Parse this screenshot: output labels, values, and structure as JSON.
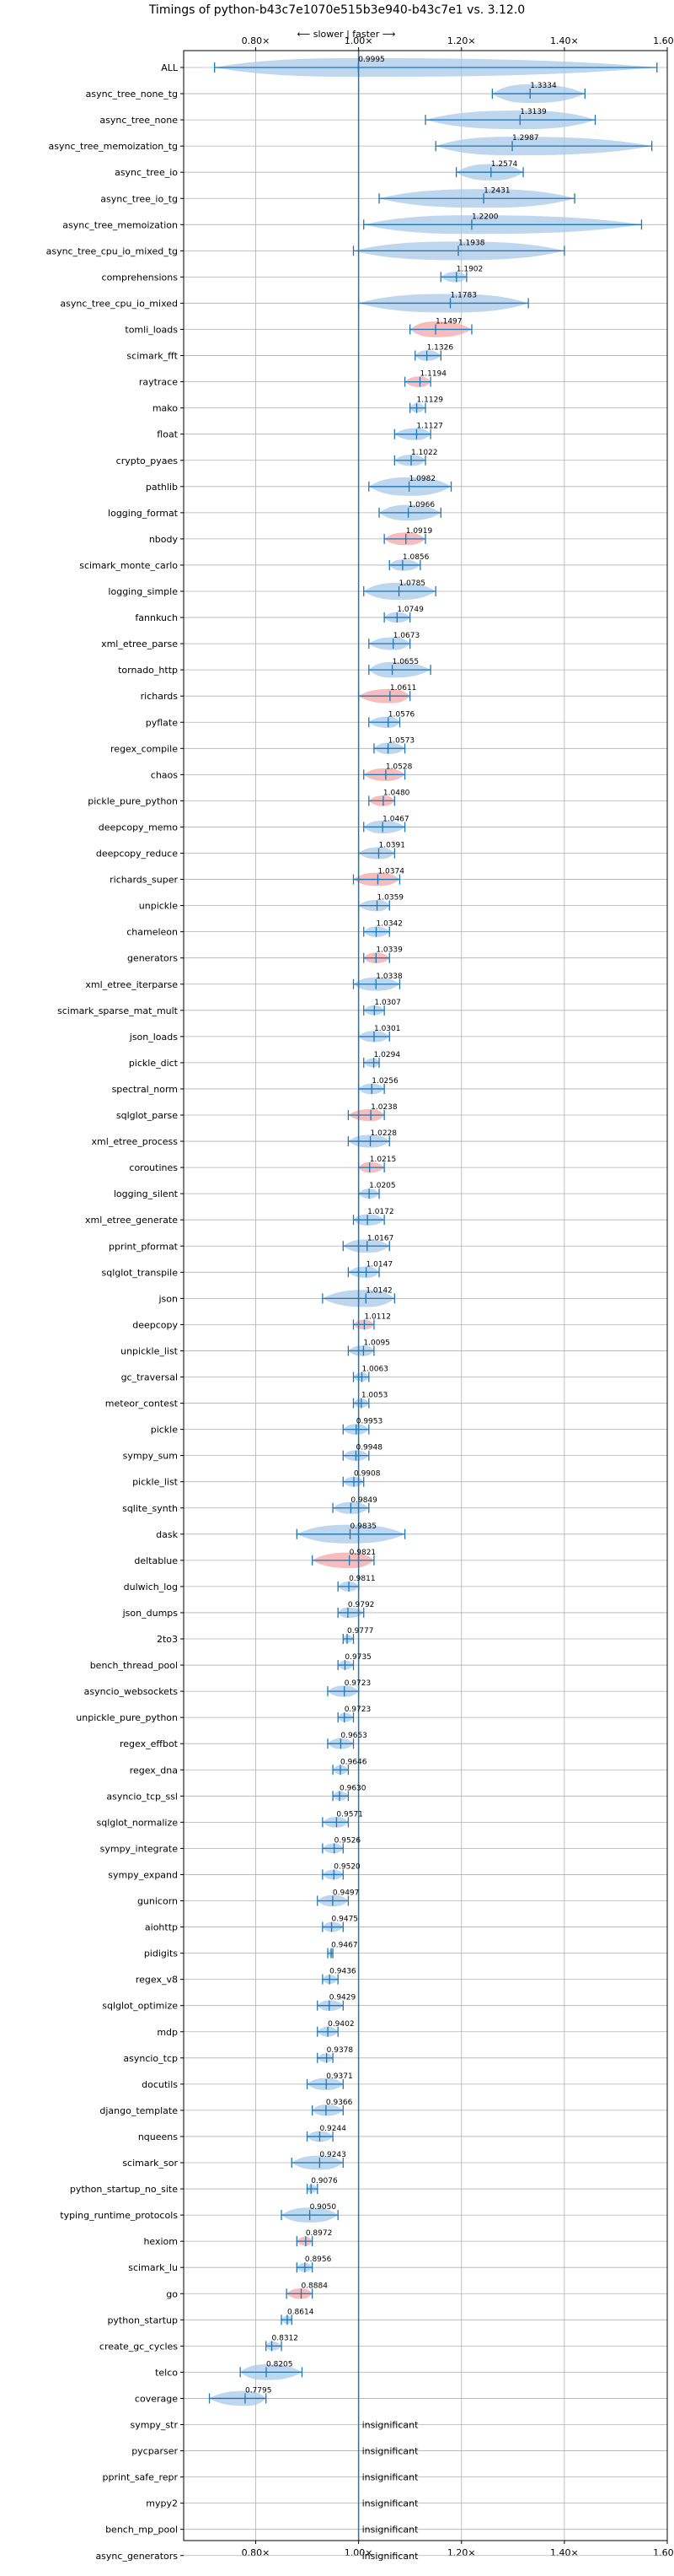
{
  "chart_data": {
    "type": "violin",
    "title": "Timings of python-b43c7e1070e515b3e940-b43c7e1 vs. 3.12.0",
    "direction_label": "⟵ slower | faster ⟶",
    "x_ticks": [
      {
        "value": 0.8,
        "label": "0.80×"
      },
      {
        "value": 1.0,
        "label": "1.00×"
      },
      {
        "value": 1.2,
        "label": "1.20×"
      },
      {
        "value": 1.4,
        "label": "1.40×"
      },
      {
        "value": 1.6,
        "label": "1.60×"
      }
    ],
    "xlim": [
      0.66,
      1.6
    ],
    "grid": true,
    "colors": {
      "faster": "#a8c8e8",
      "slower": "#f4a6a6",
      "line": "#1f77b4",
      "grid": "#b0b0b0"
    },
    "benchmarks": [
      {
        "name": "ALL",
        "value": 0.9995,
        "label": "0.9995",
        "min": 0.72,
        "max": 1.58
      },
      {
        "name": "async_tree_none_tg",
        "value": 1.3334,
        "label": "1.3334",
        "min": 1.26,
        "max": 1.44
      },
      {
        "name": "async_tree_none",
        "value": 1.3139,
        "label": "1.3139",
        "min": 1.13,
        "max": 1.46
      },
      {
        "name": "async_tree_memoization_tg",
        "value": 1.2987,
        "label": "1.2987",
        "min": 1.15,
        "max": 1.57
      },
      {
        "name": "async_tree_io",
        "value": 1.2574,
        "label": "1.2574",
        "min": 1.19,
        "max": 1.32
      },
      {
        "name": "async_tree_io_tg",
        "value": 1.2431,
        "label": "1.2431",
        "min": 1.04,
        "max": 1.42
      },
      {
        "name": "async_tree_memoization",
        "value": 1.22,
        "label": "1.2200",
        "min": 1.01,
        "max": 1.55
      },
      {
        "name": "async_tree_cpu_io_mixed_tg",
        "value": 1.1938,
        "label": "1.1938",
        "min": 0.99,
        "max": 1.4
      },
      {
        "name": "comprehensions",
        "value": 1.1902,
        "label": "1.1902",
        "min": 1.16,
        "max": 1.21
      },
      {
        "name": "async_tree_cpu_io_mixed",
        "value": 1.1783,
        "label": "1.1783",
        "min": 1.0,
        "max": 1.33
      },
      {
        "name": "tomli_loads",
        "value": 1.1497,
        "label": "1.1497",
        "min": 1.1,
        "max": 1.22
      },
      {
        "name": "scimark_fft",
        "value": 1.1326,
        "label": "1.1326",
        "min": 1.11,
        "max": 1.16
      },
      {
        "name": "raytrace",
        "value": 1.1194,
        "label": "1.1194",
        "min": 1.09,
        "max": 1.14
      },
      {
        "name": "mako",
        "value": 1.1129,
        "label": "1.1129",
        "min": 1.1,
        "max": 1.13
      },
      {
        "name": "float",
        "value": 1.1127,
        "label": "1.1127",
        "min": 1.07,
        "max": 1.14
      },
      {
        "name": "crypto_pyaes",
        "value": 1.1022,
        "label": "1.1022",
        "min": 1.07,
        "max": 1.13
      },
      {
        "name": "pathlib",
        "value": 1.0982,
        "label": "1.0982",
        "min": 1.02,
        "max": 1.18
      },
      {
        "name": "logging_format",
        "value": 1.0966,
        "label": "1.0966",
        "min": 1.04,
        "max": 1.16
      },
      {
        "name": "nbody",
        "value": 1.0919,
        "label": "1.0919",
        "min": 1.05,
        "max": 1.13
      },
      {
        "name": "scimark_monte_carlo",
        "value": 1.0856,
        "label": "1.0856",
        "min": 1.06,
        "max": 1.12
      },
      {
        "name": "logging_simple",
        "value": 1.0785,
        "label": "1.0785",
        "min": 1.01,
        "max": 1.15
      },
      {
        "name": "fannkuch",
        "value": 1.0749,
        "label": "1.0749",
        "min": 1.05,
        "max": 1.1
      },
      {
        "name": "xml_etree_parse",
        "value": 1.0673,
        "label": "1.0673",
        "min": 1.02,
        "max": 1.1
      },
      {
        "name": "tornado_http",
        "value": 1.0655,
        "label": "1.0655",
        "min": 1.02,
        "max": 1.14
      },
      {
        "name": "richards",
        "value": 1.0611,
        "label": "1.0611",
        "min": 1.0,
        "max": 1.1
      },
      {
        "name": "pyflate",
        "value": 1.0576,
        "label": "1.0576",
        "min": 1.02,
        "max": 1.08
      },
      {
        "name": "regex_compile",
        "value": 1.0573,
        "label": "1.0573",
        "min": 1.03,
        "max": 1.09
      },
      {
        "name": "chaos",
        "value": 1.0528,
        "label": "1.0528",
        "min": 1.01,
        "max": 1.09
      },
      {
        "name": "pickle_pure_python",
        "value": 1.048,
        "label": "1.0480",
        "min": 1.02,
        "max": 1.07
      },
      {
        "name": "deepcopy_memo",
        "value": 1.0467,
        "label": "1.0467",
        "min": 1.01,
        "max": 1.09
      },
      {
        "name": "deepcopy_reduce",
        "value": 1.0391,
        "label": "1.0391",
        "min": 1.0,
        "max": 1.07
      },
      {
        "name": "richards_super",
        "value": 1.0374,
        "label": "1.0374",
        "min": 0.99,
        "max": 1.08
      },
      {
        "name": "unpickle",
        "value": 1.0359,
        "label": "1.0359",
        "min": 1.0,
        "max": 1.06
      },
      {
        "name": "chameleon",
        "value": 1.0342,
        "label": "1.0342",
        "min": 1.01,
        "max": 1.06
      },
      {
        "name": "generators",
        "value": 1.0339,
        "label": "1.0339",
        "min": 1.01,
        "max": 1.06
      },
      {
        "name": "xml_etree_iterparse",
        "value": 1.0338,
        "label": "1.0338",
        "min": 0.99,
        "max": 1.08
      },
      {
        "name": "scimark_sparse_mat_mult",
        "value": 1.0307,
        "label": "1.0307",
        "min": 1.01,
        "max": 1.05
      },
      {
        "name": "json_loads",
        "value": 1.0301,
        "label": "1.0301",
        "min": 1.0,
        "max": 1.06
      },
      {
        "name": "pickle_dict",
        "value": 1.0294,
        "label": "1.0294",
        "min": 1.01,
        "max": 1.04
      },
      {
        "name": "spectral_norm",
        "value": 1.0256,
        "label": "1.0256",
        "min": 1.0,
        "max": 1.05
      },
      {
        "name": "sqlglot_parse",
        "value": 1.0238,
        "label": "1.0238",
        "min": 0.98,
        "max": 1.05
      },
      {
        "name": "xml_etree_process",
        "value": 1.0228,
        "label": "1.0228",
        "min": 0.98,
        "max": 1.06
      },
      {
        "name": "coroutines",
        "value": 1.0215,
        "label": "1.0215",
        "min": 1.0,
        "max": 1.05
      },
      {
        "name": "logging_silent",
        "value": 1.0205,
        "label": "1.0205",
        "min": 1.0,
        "max": 1.04
      },
      {
        "name": "xml_etree_generate",
        "value": 1.0172,
        "label": "1.0172",
        "min": 0.99,
        "max": 1.05
      },
      {
        "name": "pprint_pformat",
        "value": 1.0167,
        "label": "1.0167",
        "min": 0.97,
        "max": 1.06
      },
      {
        "name": "sqlglot_transpile",
        "value": 1.0147,
        "label": "1.0147",
        "min": 0.98,
        "max": 1.04
      },
      {
        "name": "json",
        "value": 1.0142,
        "label": "1.0142",
        "min": 0.93,
        "max": 1.07
      },
      {
        "name": "deepcopy",
        "value": 1.0112,
        "label": "1.0112",
        "min": 0.99,
        "max": 1.03
      },
      {
        "name": "unpickle_list",
        "value": 1.0095,
        "label": "1.0095",
        "min": 0.98,
        "max": 1.03
      },
      {
        "name": "gc_traversal",
        "value": 1.0063,
        "label": "1.0063",
        "min": 0.99,
        "max": 1.02
      },
      {
        "name": "meteor_contest",
        "value": 1.0053,
        "label": "1.0053",
        "min": 0.99,
        "max": 1.02
      },
      {
        "name": "pickle",
        "value": 0.9953,
        "label": "0.9953",
        "min": 0.97,
        "max": 1.02
      },
      {
        "name": "sympy_sum",
        "value": 0.9948,
        "label": "0.9948",
        "min": 0.97,
        "max": 1.02
      },
      {
        "name": "pickle_list",
        "value": 0.9908,
        "label": "0.9908",
        "min": 0.97,
        "max": 1.01
      },
      {
        "name": "sqlite_synth",
        "value": 0.9849,
        "label": "0.9849",
        "min": 0.95,
        "max": 1.02
      },
      {
        "name": "dask",
        "value": 0.9835,
        "label": "0.9835",
        "min": 0.88,
        "max": 1.09
      },
      {
        "name": "deltablue",
        "value": 0.9821,
        "label": "0.9821",
        "min": 0.91,
        "max": 1.03
      },
      {
        "name": "dulwich_log",
        "value": 0.9811,
        "label": "0.9811",
        "min": 0.96,
        "max": 1.0
      },
      {
        "name": "json_dumps",
        "value": 0.9792,
        "label": "0.9792",
        "min": 0.96,
        "max": 1.01
      },
      {
        "name": "2to3",
        "value": 0.9777,
        "label": "0.9777",
        "min": 0.97,
        "max": 0.99
      },
      {
        "name": "bench_thread_pool",
        "value": 0.9735,
        "label": "0.9735",
        "min": 0.96,
        "max": 0.99
      },
      {
        "name": "asyncio_websockets",
        "value": 0.9723,
        "label": "0.9723",
        "min": 0.94,
        "max": 1.0
      },
      {
        "name": "unpickle_pure_python",
        "value": 0.9723,
        "label": "0.9723",
        "min": 0.96,
        "max": 0.99
      },
      {
        "name": "regex_effbot",
        "value": 0.9653,
        "label": "0.9653",
        "min": 0.94,
        "max": 0.99
      },
      {
        "name": "regex_dna",
        "value": 0.9646,
        "label": "0.9646",
        "min": 0.95,
        "max": 0.98
      },
      {
        "name": "asyncio_tcp_ssl",
        "value": 0.963,
        "label": "0.9630",
        "min": 0.95,
        "max": 0.98
      },
      {
        "name": "sqlglot_normalize",
        "value": 0.9571,
        "label": "0.9571",
        "min": 0.93,
        "max": 0.98
      },
      {
        "name": "sympy_integrate",
        "value": 0.9526,
        "label": "0.9526",
        "min": 0.93,
        "max": 0.97
      },
      {
        "name": "sympy_expand",
        "value": 0.952,
        "label": "0.9520",
        "min": 0.93,
        "max": 0.97
      },
      {
        "name": "gunicorn",
        "value": 0.9497,
        "label": "0.9497",
        "min": 0.92,
        "max": 0.98
      },
      {
        "name": "aiohttp",
        "value": 0.9475,
        "label": "0.9475",
        "min": 0.93,
        "max": 0.97
      },
      {
        "name": "pidigits",
        "value": 0.9467,
        "label": "0.9467",
        "min": 0.94,
        "max": 0.95
      },
      {
        "name": "regex_v8",
        "value": 0.9436,
        "label": "0.9436",
        "min": 0.93,
        "max": 0.96
      },
      {
        "name": "sqlglot_optimize",
        "value": 0.9429,
        "label": "0.9429",
        "min": 0.92,
        "max": 0.97
      },
      {
        "name": "mdp",
        "value": 0.9402,
        "label": "0.9402",
        "min": 0.92,
        "max": 0.96
      },
      {
        "name": "asyncio_tcp",
        "value": 0.9378,
        "label": "0.9378",
        "min": 0.92,
        "max": 0.95
      },
      {
        "name": "docutils",
        "value": 0.9371,
        "label": "0.9371",
        "min": 0.9,
        "max": 0.97
      },
      {
        "name": "django_template",
        "value": 0.9366,
        "label": "0.9366",
        "min": 0.91,
        "max": 0.97
      },
      {
        "name": "nqueens",
        "value": 0.9244,
        "label": "0.9244",
        "min": 0.9,
        "max": 0.95
      },
      {
        "name": "scimark_sor",
        "value": 0.9243,
        "label": "0.9243",
        "min": 0.87,
        "max": 0.97
      },
      {
        "name": "python_startup_no_site",
        "value": 0.9076,
        "label": "0.9076",
        "min": 0.9,
        "max": 0.92
      },
      {
        "name": "typing_runtime_protocols",
        "value": 0.905,
        "label": "0.9050",
        "min": 0.85,
        "max": 0.96
      },
      {
        "name": "hexiom",
        "value": 0.8972,
        "label": "0.8972",
        "min": 0.88,
        "max": 0.91
      },
      {
        "name": "scimark_lu",
        "value": 0.8956,
        "label": "0.8956",
        "min": 0.88,
        "max": 0.91
      },
      {
        "name": "go",
        "value": 0.8884,
        "label": "0.8884",
        "min": 0.86,
        "max": 0.91
      },
      {
        "name": "python_startup",
        "value": 0.8614,
        "label": "0.8614",
        "min": 0.85,
        "max": 0.87
      },
      {
        "name": "create_gc_cycles",
        "value": 0.8312,
        "label": "0.8312",
        "min": 0.82,
        "max": 0.85
      },
      {
        "name": "telco",
        "value": 0.8205,
        "label": "0.8205",
        "min": 0.77,
        "max": 0.89
      },
      {
        "name": "coverage",
        "value": 0.7795,
        "label": "0.7795",
        "min": 0.71,
        "max": 0.82
      },
      {
        "name": "sympy_str",
        "value": 1.0,
        "label": "insignificant",
        "insignificant": true
      },
      {
        "name": "pycparser",
        "value": 1.0,
        "label": "insignificant",
        "insignificant": true
      },
      {
        "name": "pprint_safe_repr",
        "value": 1.0,
        "label": "insignificant",
        "insignificant": true
      },
      {
        "name": "mypy2",
        "value": 1.0,
        "label": "insignificant",
        "insignificant": true
      },
      {
        "name": "bench_mp_pool",
        "value": 1.0,
        "label": "insignificant",
        "insignificant": true
      },
      {
        "name": "async_generators",
        "value": 1.0,
        "label": "insignificant",
        "insignificant": true
      }
    ]
  }
}
